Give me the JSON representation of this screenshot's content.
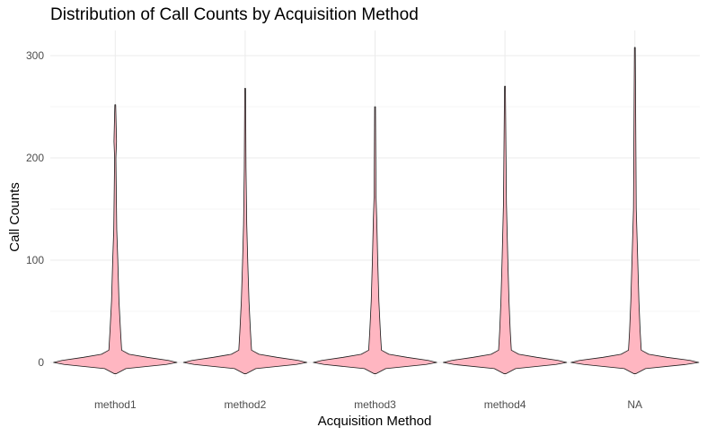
{
  "chart_data": {
    "type": "violin",
    "title": "Distribution of Call Counts by Acquisition Method",
    "xlabel": "Acquisition Method",
    "ylabel": "Call Counts",
    "categories": [
      "method1",
      "method2",
      "method3",
      "method4",
      "NA"
    ],
    "ylim": [
      -14,
      325
    ],
    "yticks": [
      0,
      100,
      200,
      300
    ],
    "grid": true,
    "fill_color": "#ffb6c1",
    "outline_color": "#1a1a1a",
    "series": [
      {
        "category": "method1",
        "min": -11,
        "max": 252,
        "profile": [
          [
            -11,
            1
          ],
          [
            -6,
            10
          ],
          [
            -2,
            48
          ],
          [
            0,
            58
          ],
          [
            2,
            50
          ],
          [
            5,
            30
          ],
          [
            8,
            13
          ],
          [
            12,
            6
          ],
          [
            30,
            5
          ],
          [
            60,
            3.5
          ],
          [
            100,
            2.4
          ],
          [
            130,
            1.4
          ],
          [
            200,
            0.6
          ],
          [
            216,
            1.2
          ],
          [
            252,
            0.4
          ]
        ]
      },
      {
        "category": "method2",
        "min": -11,
        "max": 268,
        "profile": [
          [
            -11,
            1
          ],
          [
            -6,
            10
          ],
          [
            -2,
            48
          ],
          [
            0,
            58
          ],
          [
            2,
            50
          ],
          [
            5,
            30
          ],
          [
            8,
            13
          ],
          [
            12,
            6
          ],
          [
            30,
            5
          ],
          [
            60,
            3.6
          ],
          [
            100,
            2.4
          ],
          [
            135,
            1.5
          ],
          [
            190,
            0.8
          ],
          [
            268,
            0.4
          ]
        ]
      },
      {
        "category": "method3",
        "min": -11,
        "max": 250,
        "profile": [
          [
            -11,
            1
          ],
          [
            -6,
            10
          ],
          [
            -2,
            48
          ],
          [
            0,
            58
          ],
          [
            2,
            50
          ],
          [
            5,
            30
          ],
          [
            8,
            13
          ],
          [
            12,
            6
          ],
          [
            30,
            5
          ],
          [
            60,
            3.6
          ],
          [
            100,
            2.5
          ],
          [
            140,
            1.6
          ],
          [
            162,
            0.9
          ],
          [
            250,
            0.4
          ]
        ]
      },
      {
        "category": "method4",
        "min": -11,
        "max": 270,
        "profile": [
          [
            -11,
            1
          ],
          [
            -6,
            10
          ],
          [
            -2,
            48
          ],
          [
            0,
            58
          ],
          [
            2,
            50
          ],
          [
            5,
            30
          ],
          [
            8,
            13
          ],
          [
            12,
            6
          ],
          [
            30,
            5
          ],
          [
            60,
            3.8
          ],
          [
            100,
            2.7
          ],
          [
            155,
            1.4
          ],
          [
            270,
            0.4
          ]
        ]
      },
      {
        "category": "NA",
        "min": -11,
        "max": 308,
        "profile": [
          [
            -11,
            1
          ],
          [
            -6,
            10
          ],
          [
            -2,
            48
          ],
          [
            0,
            60
          ],
          [
            2,
            52
          ],
          [
            5,
            30
          ],
          [
            8,
            13
          ],
          [
            12,
            6
          ],
          [
            30,
            5
          ],
          [
            60,
            3.8
          ],
          [
            100,
            2.7
          ],
          [
            150,
            1.3
          ],
          [
            308,
            0.4
          ]
        ]
      }
    ]
  }
}
